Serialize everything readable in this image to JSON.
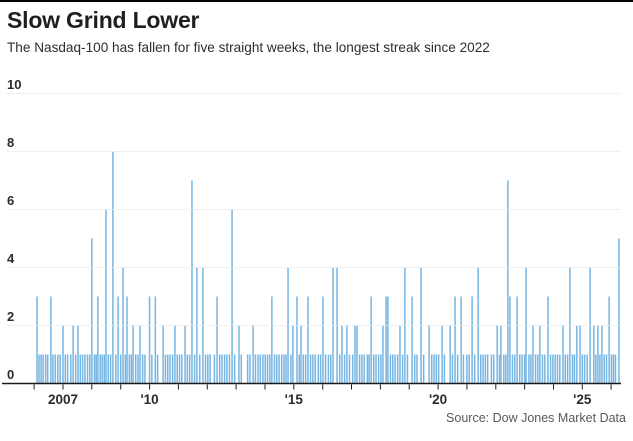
{
  "page": {
    "title": "Slow Grind Lower",
    "subtitle": "The Nasdaq-100 has fallen for five straight weeks, the longest streak since 2022",
    "source": "Source: Dow Jones Market Data"
  },
  "colors": {
    "bar": "#77b5e2",
    "gridline": "#e0e0e0",
    "axis": "#1a1a1a",
    "title_text": "#1f1f1f",
    "subtitle_text": "#2e2e2e",
    "tick_label": "#2b2b2b",
    "source_text": "#5a5a5a",
    "top_rule": "#000000"
  },
  "chart_data": {
    "type": "bar",
    "title": "Slow Grind Lower",
    "subtitle": "The Nasdaq-100 has fallen for five straight weeks, the longest streak since 2022",
    "source": "Source: Dow Jones Market Data",
    "series_name": "Nasdaq-100 consecutive weekly declines (weeks)",
    "xlabel": "",
    "ylabel": "",
    "ylim": [
      0,
      10
    ],
    "yticks": [
      0,
      2,
      4,
      6,
      8,
      10
    ],
    "grid": "horizontal",
    "legend": "none",
    "x_domain_years": [
      2005.8,
      2026.45
    ],
    "xtick_years": [
      2006,
      2007,
      2008,
      2009,
      2010,
      2011,
      2012,
      2013,
      2014,
      2015,
      2016,
      2017,
      2018,
      2019,
      2020,
      2021,
      2022,
      2023,
      2024,
      2025,
      2026
    ],
    "xtick_labels": {
      "2007": "2007",
      "2010": "'10",
      "2015": "'15",
      "2020": "'20",
      "2025": "'25"
    },
    "notable_points": [
      {
        "t": 2008.0,
        "weeks": 5
      },
      {
        "t": 2008.49,
        "weeks": 6
      },
      {
        "t": 2008.73,
        "weeks": 8
      },
      {
        "t": 2011.47,
        "weeks": 7
      },
      {
        "t": 2012.86,
        "weeks": 6
      },
      {
        "t": 2022.42,
        "weeks": 7
      },
      {
        "t": 2026.27,
        "weeks": 5
      }
    ],
    "events": [
      [
        2006.1,
        3
      ],
      [
        2006.17,
        1
      ],
      [
        2006.24,
        1
      ],
      [
        2006.31,
        1
      ],
      [
        2006.4,
        1
      ],
      [
        2006.47,
        1
      ],
      [
        2006.58,
        3
      ],
      [
        2006.65,
        1
      ],
      [
        2006.73,
        1
      ],
      [
        2006.82,
        1
      ],
      [
        2006.9,
        1
      ],
      [
        2007.0,
        2
      ],
      [
        2007.08,
        1
      ],
      [
        2007.16,
        1
      ],
      [
        2007.27,
        1
      ],
      [
        2007.35,
        2
      ],
      [
        2007.44,
        1
      ],
      [
        2007.52,
        2
      ],
      [
        2007.6,
        1
      ],
      [
        2007.68,
        1
      ],
      [
        2007.76,
        1
      ],
      [
        2007.85,
        1
      ],
      [
        2007.93,
        1
      ],
      [
        2008.0,
        5
      ],
      [
        2008.09,
        1
      ],
      [
        2008.15,
        1
      ],
      [
        2008.21,
        3
      ],
      [
        2008.29,
        1
      ],
      [
        2008.36,
        1
      ],
      [
        2008.43,
        1
      ],
      [
        2008.49,
        6
      ],
      [
        2008.57,
        1
      ],
      [
        2008.65,
        1
      ],
      [
        2008.73,
        8
      ],
      [
        2008.83,
        1
      ],
      [
        2008.91,
        3
      ],
      [
        2009.0,
        1
      ],
      [
        2009.08,
        4
      ],
      [
        2009.16,
        1
      ],
      [
        2009.22,
        3
      ],
      [
        2009.3,
        1
      ],
      [
        2009.37,
        1
      ],
      [
        2009.43,
        2
      ],
      [
        2009.52,
        1
      ],
      [
        2009.6,
        1
      ],
      [
        2009.67,
        2
      ],
      [
        2009.76,
        1
      ],
      [
        2009.84,
        1
      ],
      [
        2010.0,
        3
      ],
      [
        2010.08,
        1
      ],
      [
        2010.2,
        3
      ],
      [
        2010.28,
        1
      ],
      [
        2010.47,
        2
      ],
      [
        2010.55,
        1
      ],
      [
        2010.63,
        1
      ],
      [
        2010.71,
        1
      ],
      [
        2010.8,
        1
      ],
      [
        2010.88,
        2
      ],
      [
        2010.96,
        1
      ],
      [
        2011.04,
        1
      ],
      [
        2011.12,
        1
      ],
      [
        2011.23,
        2
      ],
      [
        2011.31,
        1
      ],
      [
        2011.39,
        1
      ],
      [
        2011.47,
        7
      ],
      [
        2011.56,
        1
      ],
      [
        2011.64,
        4
      ],
      [
        2011.74,
        1
      ],
      [
        2011.85,
        4
      ],
      [
        2011.94,
        1
      ],
      [
        2012.02,
        1
      ],
      [
        2012.1,
        1
      ],
      [
        2012.25,
        1
      ],
      [
        2012.34,
        3
      ],
      [
        2012.43,
        1
      ],
      [
        2012.51,
        1
      ],
      [
        2012.6,
        1
      ],
      [
        2012.68,
        1
      ],
      [
        2012.77,
        1
      ],
      [
        2012.86,
        6
      ],
      [
        2012.95,
        1
      ],
      [
        2013.1,
        2
      ],
      [
        2013.18,
        1
      ],
      [
        2013.4,
        1
      ],
      [
        2013.48,
        1
      ],
      [
        2013.59,
        2
      ],
      [
        2013.67,
        1
      ],
      [
        2013.76,
        1
      ],
      [
        2013.84,
        1
      ],
      [
        2013.93,
        1
      ],
      [
        2014.01,
        1
      ],
      [
        2014.09,
        1
      ],
      [
        2014.17,
        1
      ],
      [
        2014.24,
        3
      ],
      [
        2014.33,
        1
      ],
      [
        2014.41,
        1
      ],
      [
        2014.49,
        1
      ],
      [
        2014.58,
        1
      ],
      [
        2014.66,
        1
      ],
      [
        2014.73,
        1
      ],
      [
        2014.8,
        4
      ],
      [
        2014.9,
        1
      ],
      [
        2014.97,
        2
      ],
      [
        2015.11,
        3
      ],
      [
        2015.19,
        1
      ],
      [
        2015.25,
        2
      ],
      [
        2015.33,
        1
      ],
      [
        2015.41,
        1
      ],
      [
        2015.49,
        3
      ],
      [
        2015.58,
        1
      ],
      [
        2015.66,
        1
      ],
      [
        2015.74,
        1
      ],
      [
        2015.85,
        1
      ],
      [
        2015.93,
        1
      ],
      [
        2016.01,
        3
      ],
      [
        2016.1,
        1
      ],
      [
        2016.2,
        1
      ],
      [
        2016.28,
        1
      ],
      [
        2016.36,
        4
      ],
      [
        2016.5,
        4
      ],
      [
        2016.59,
        1
      ],
      [
        2016.67,
        2
      ],
      [
        2016.76,
        1
      ],
      [
        2016.84,
        2
      ],
      [
        2016.93,
        1
      ],
      [
        2017.04,
        1
      ],
      [
        2017.12,
        2
      ],
      [
        2017.19,
        2
      ],
      [
        2017.28,
        1
      ],
      [
        2017.36,
        1
      ],
      [
        2017.44,
        1
      ],
      [
        2017.55,
        1
      ],
      [
        2017.61,
        1
      ],
      [
        2017.68,
        3
      ],
      [
        2017.77,
        1
      ],
      [
        2017.85,
        1
      ],
      [
        2017.94,
        1
      ],
      [
        2018.02,
        1
      ],
      [
        2018.09,
        2
      ],
      [
        2018.2,
        3
      ],
      [
        2018.26,
        3
      ],
      [
        2018.35,
        1
      ],
      [
        2018.43,
        1
      ],
      [
        2018.51,
        1
      ],
      [
        2018.6,
        1
      ],
      [
        2018.68,
        2
      ],
      [
        2018.77,
        1
      ],
      [
        2018.85,
        4
      ],
      [
        2018.94,
        1
      ],
      [
        2019.1,
        3
      ],
      [
        2019.19,
        1
      ],
      [
        2019.27,
        1
      ],
      [
        2019.41,
        4
      ],
      [
        2019.5,
        1
      ],
      [
        2019.69,
        2
      ],
      [
        2019.78,
        1
      ],
      [
        2019.86,
        1
      ],
      [
        2019.94,
        1
      ],
      [
        2020.02,
        1
      ],
      [
        2020.14,
        2
      ],
      [
        2020.22,
        1
      ],
      [
        2020.42,
        2
      ],
      [
        2020.5,
        1
      ],
      [
        2020.59,
        3
      ],
      [
        2020.68,
        1
      ],
      [
        2020.8,
        3
      ],
      [
        2020.88,
        1
      ],
      [
        2021.0,
        1
      ],
      [
        2021.08,
        1
      ],
      [
        2021.18,
        3
      ],
      [
        2021.27,
        1
      ],
      [
        2021.39,
        4
      ],
      [
        2021.48,
        1
      ],
      [
        2021.56,
        1
      ],
      [
        2021.64,
        1
      ],
      [
        2021.72,
        1
      ],
      [
        2021.85,
        1
      ],
      [
        2021.93,
        1
      ],
      [
        2022.05,
        2
      ],
      [
        2022.13,
        1
      ],
      [
        2022.18,
        2
      ],
      [
        2022.28,
        1
      ],
      [
        2022.35,
        1
      ],
      [
        2022.42,
        7
      ],
      [
        2022.49,
        3
      ],
      [
        2022.58,
        1
      ],
      [
        2022.66,
        1
      ],
      [
        2022.74,
        3
      ],
      [
        2022.83,
        1
      ],
      [
        2022.91,
        1
      ],
      [
        2023.0,
        1
      ],
      [
        2023.05,
        4
      ],
      [
        2023.15,
        1
      ],
      [
        2023.22,
        1
      ],
      [
        2023.29,
        2
      ],
      [
        2023.38,
        1
      ],
      [
        2023.46,
        1
      ],
      [
        2023.53,
        2
      ],
      [
        2023.62,
        1
      ],
      [
        2023.7,
        1
      ],
      [
        2023.81,
        3
      ],
      [
        2023.9,
        1
      ],
      [
        2023.98,
        1
      ],
      [
        2024.06,
        1
      ],
      [
        2024.14,
        1
      ],
      [
        2024.22,
        1
      ],
      [
        2024.33,
        2
      ],
      [
        2024.41,
        1
      ],
      [
        2024.49,
        1
      ],
      [
        2024.57,
        4
      ],
      [
        2024.66,
        1
      ],
      [
        2024.73,
        1
      ],
      [
        2024.81,
        2
      ],
      [
        2024.92,
        2
      ],
      [
        2025.0,
        1
      ],
      [
        2025.08,
        1
      ],
      [
        2025.17,
        1
      ],
      [
        2025.27,
        4
      ],
      [
        2025.4,
        2
      ],
      [
        2025.47,
        1
      ],
      [
        2025.54,
        2
      ],
      [
        2025.61,
        1
      ],
      [
        2025.68,
        2
      ],
      [
        2025.76,
        1
      ],
      [
        2025.84,
        1
      ],
      [
        2025.93,
        3
      ],
      [
        2026.01,
        1
      ],
      [
        2026.08,
        1
      ],
      [
        2026.15,
        1
      ],
      [
        2026.27,
        5
      ]
    ]
  }
}
